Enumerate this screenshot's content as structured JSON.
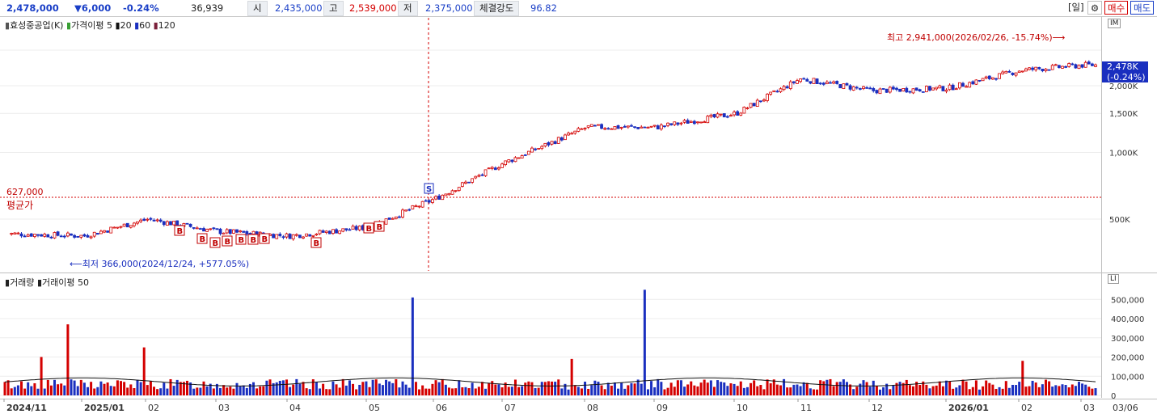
{
  "header": {
    "price": "2,478,000",
    "change": "▼6,000",
    "change_pct": "-0.24%",
    "volume": "36,939",
    "open_label": "시",
    "open": "2,435,000",
    "high_label": "고",
    "high": "2,539,000",
    "low_label": "저",
    "low": "2,375,000",
    "strength_label": "체결강도",
    "strength": "96.82",
    "period_button": "[일]",
    "settings_icon": "gear-icon",
    "buy_button": "매수",
    "sell_button": "매도"
  },
  "price_panel": {
    "stock_name": "효성중공업(K)",
    "ma_label": "가격이평",
    "ma_periods": [
      "5",
      "20",
      "60",
      "120"
    ],
    "ma_colors": {
      "5": "#3aa035",
      "20": "#111111",
      "60": "#1a2fbf",
      "120": "#7a1f3a"
    },
    "high_annotation": "최고 2,941,000(2026/02/26, -15.74%)⟶",
    "low_annotation": "⟵최저 366,000(2024/12/24, +577.05%)",
    "avg_price_value": "627,000",
    "avg_price_label": "평균가",
    "current_price_tag": "2,478K",
    "current_change_tag": "(-0.24%)",
    "panel_buttons": [
      "I",
      "M"
    ],
    "buy_marker": "B",
    "sell_marker": "S"
  },
  "volume_panel": {
    "title_volume": "거래량",
    "title_ma": "거래이평 50",
    "panel_buttons": [
      "LI"
    ]
  },
  "x_axis": {
    "labels": [
      "2024/11",
      "2025/01",
      "02",
      "03",
      "04",
      "05",
      "06",
      "07",
      "08",
      "09",
      "10",
      "11",
      "12",
      "2026/01",
      "02",
      "03"
    ],
    "current_date": "03/06"
  },
  "chart_data": [
    {
      "type": "candlestick",
      "title": "효성중공업(K)",
      "y_scale": "log",
      "y_ticks": [
        "2,000K",
        "1,500K",
        "1,000K",
        "500K"
      ],
      "x": [
        "2024/11",
        "2025/01",
        "02",
        "03",
        "04",
        "05",
        "06",
        "07",
        "08",
        "09",
        "10",
        "11",
        "12",
        "2026/01",
        "02",
        "03"
      ],
      "close_approx": [
        430000,
        420000,
        500000,
        440000,
        420000,
        460000,
        620000,
        900000,
        1300000,
        1300000,
        1500000,
        2150000,
        1900000,
        1950000,
        2350000,
        2478000
      ],
      "series": [
        {
          "name": "5",
          "values": [
            430000,
            425000,
            495000,
            440000,
            420000,
            470000,
            640000,
            930000,
            1300000,
            1300000,
            1520000,
            2150000,
            1900000,
            1960000,
            2330000,
            2470000
          ]
        },
        {
          "name": "20",
          "values": [
            425000,
            430000,
            480000,
            450000,
            425000,
            450000,
            590000,
            870000,
            1250000,
            1300000,
            1450000,
            2050000,
            1950000,
            1950000,
            2250000,
            2400000
          ]
        },
        {
          "name": "60",
          "values": [
            390000,
            400000,
            430000,
            440000,
            430000,
            430000,
            500000,
            650000,
            900000,
            1100000,
            1250000,
            1600000,
            1800000,
            1900000,
            2050000,
            2150000
          ]
        },
        {
          "name": "120",
          "values": [
            340000,
            350000,
            370000,
            400000,
            410000,
            420000,
            450000,
            520000,
            620000,
            780000,
            950000,
            1200000,
            1450000,
            1600000,
            1800000,
            1950000
          ]
        }
      ],
      "highest": {
        "value": 2941000,
        "date": "2026/02/26"
      },
      "lowest": {
        "value": 366000,
        "date": "2024/12/24"
      },
      "avg_price": 627000,
      "last_price": 2478000
    },
    {
      "type": "bar",
      "title": "거래량",
      "y_ticks": [
        "500,000",
        "400,000",
        "300,000",
        "200,000",
        "100,000",
        "0"
      ],
      "ylim": [
        0,
        560000
      ],
      "spikes": [
        {
          "x": "2024/11",
          "value": 200000
        },
        {
          "x": "2025/01",
          "value": 370000
        },
        {
          "x": "02",
          "value": 250000
        },
        {
          "x": "05",
          "value": 510000
        },
        {
          "x": "08",
          "value": 190000
        },
        {
          "x": "08",
          "value": 550000
        },
        {
          "x": "02",
          "value": 180000
        }
      ],
      "ma_value": 70000
    }
  ]
}
